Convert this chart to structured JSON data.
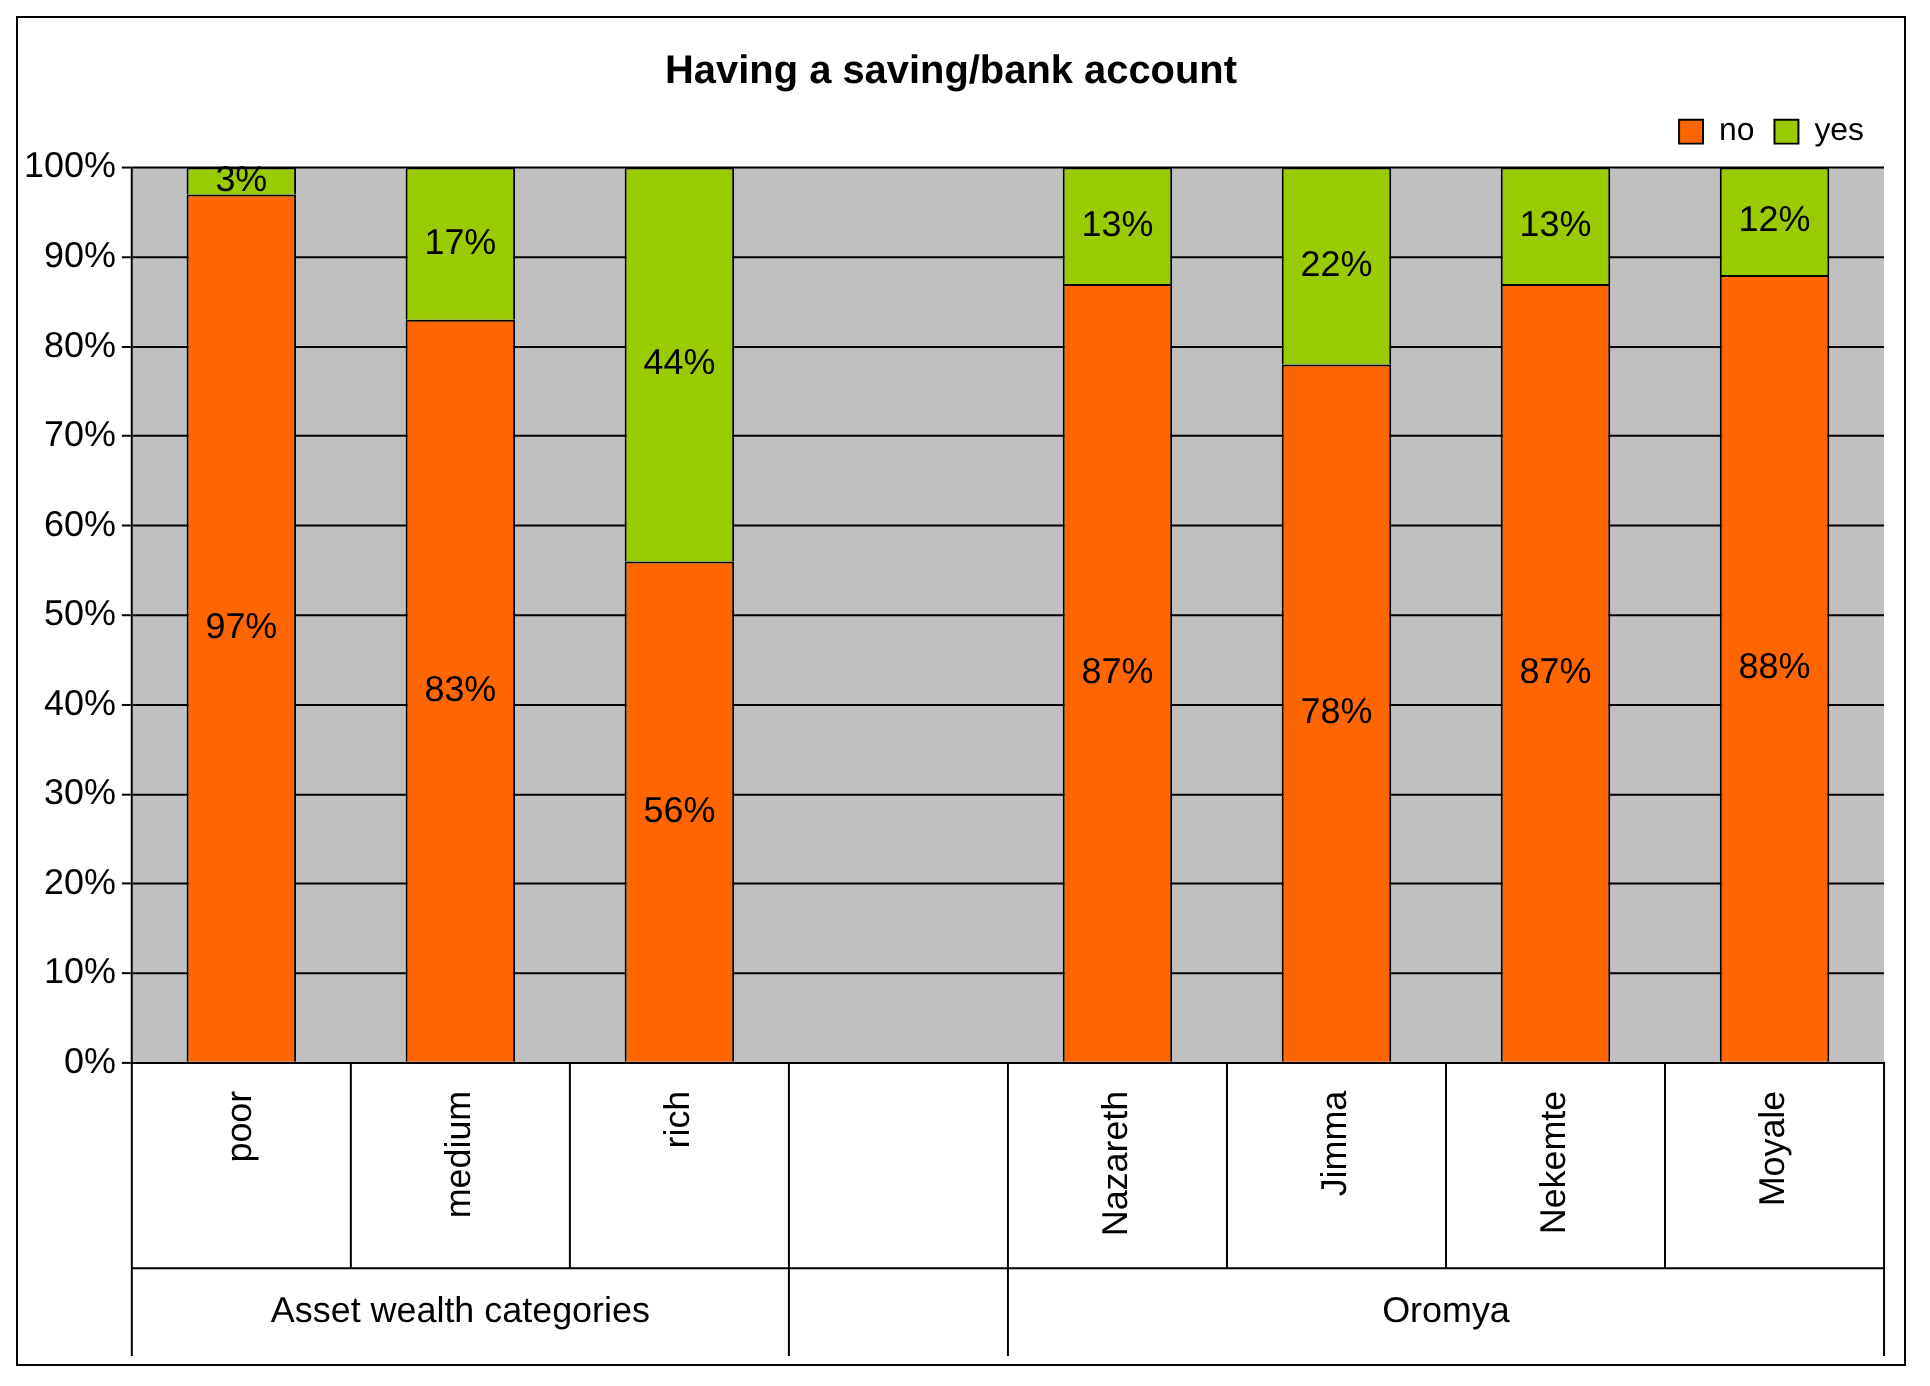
{
  "chart_data": {
    "type": "bar",
    "title": "Having a saving/bank account",
    "stacked": true,
    "categories": [
      "poor",
      "medium",
      "rich",
      null,
      "Nazareth",
      "Jimma",
      "Nekemte",
      "Moyale"
    ],
    "series": [
      {
        "name": "no",
        "color": "#ff6600",
        "values": [
          97,
          83,
          56,
          null,
          87,
          78,
          87,
          88
        ],
        "value_labels": [
          "97%",
          "83%",
          "56%",
          null,
          "87%",
          "78%",
          "87%",
          "88%"
        ]
      },
      {
        "name": "yes",
        "color": "#99cc00",
        "values": [
          3,
          17,
          44,
          null,
          13,
          22,
          13,
          12
        ],
        "value_labels": [
          "3%",
          "17%",
          "44%",
          null,
          "13%",
          "22%",
          "13%",
          "12%"
        ]
      }
    ],
    "ylim": [
      0,
      100
    ],
    "yticks": [
      {
        "value": 0,
        "label": "0%"
      },
      {
        "value": 10,
        "label": "10%"
      },
      {
        "value": 20,
        "label": "20%"
      },
      {
        "value": 30,
        "label": "30%"
      },
      {
        "value": 40,
        "label": "40%"
      },
      {
        "value": 50,
        "label": "50%"
      },
      {
        "value": 60,
        "label": "60%"
      },
      {
        "value": 70,
        "label": "70%"
      },
      {
        "value": 80,
        "label": "80%"
      },
      {
        "value": 90,
        "label": "90%"
      },
      {
        "value": 100,
        "label": "100%"
      }
    ],
    "grid": "y",
    "legend": "top right",
    "annotations": [
      "Asset wealth categories",
      "Oromya"
    ]
  }
}
